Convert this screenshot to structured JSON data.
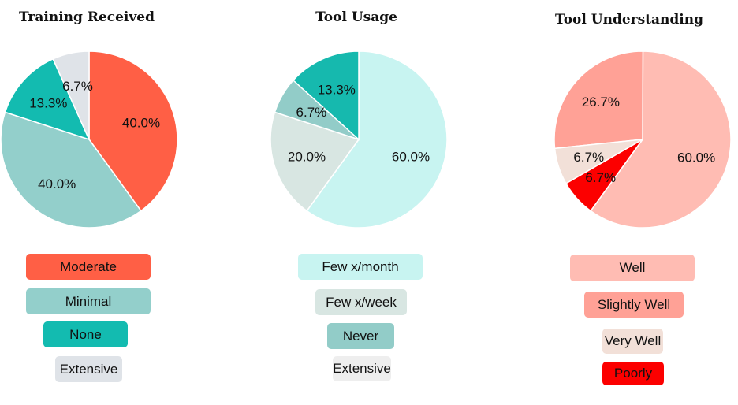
{
  "chart_data": [
    {
      "type": "pie",
      "title": "Training Received",
      "labels": [
        "Moderate",
        "Minimal",
        "None",
        "Extensive"
      ],
      "values": [
        40.0,
        40.0,
        13.3,
        6.7
      ],
      "value_labels": [
        "40.0%",
        "40.0%",
        "13.3%",
        "6.7%"
      ],
      "colors": [
        "#ff5f45",
        "#93cfcb",
        "#13bbb0",
        "#dfe3e8"
      ],
      "legend_placement": "below"
    },
    {
      "type": "pie",
      "title": "Tool Usage",
      "labels": [
        "Few x/month",
        "Few x/week",
        "Never",
        "Extensive"
      ],
      "values": [
        60.0,
        20.0,
        6.7,
        13.3
      ],
      "value_labels": [
        "60.0%",
        "20.0%",
        "6.7%",
        "13.3%"
      ],
      "colors": [
        "#c8f4f1",
        "#d8e6e2",
        "#92ccc8",
        "#16b9ae"
      ],
      "legend_colors": [
        "#c8f4f1",
        "#d8e6e2",
        "#92ccc8",
        "#eeeeee"
      ],
      "legend_placement": "below"
    },
    {
      "type": "pie",
      "title": "Tool Understanding",
      "labels": [
        "Well",
        "Slightly Well",
        "Very Well",
        "Poorly"
      ],
      "values": [
        60.0,
        26.7,
        6.7,
        6.7
      ],
      "value_labels": [
        "60.0%",
        "26.7%",
        "6.7%",
        "6.7%"
      ],
      "colors": [
        "#ffbcb3",
        "#ffa196",
        "#f2e0d8",
        "#fc0000"
      ],
      "legend_placement": "below"
    }
  ]
}
